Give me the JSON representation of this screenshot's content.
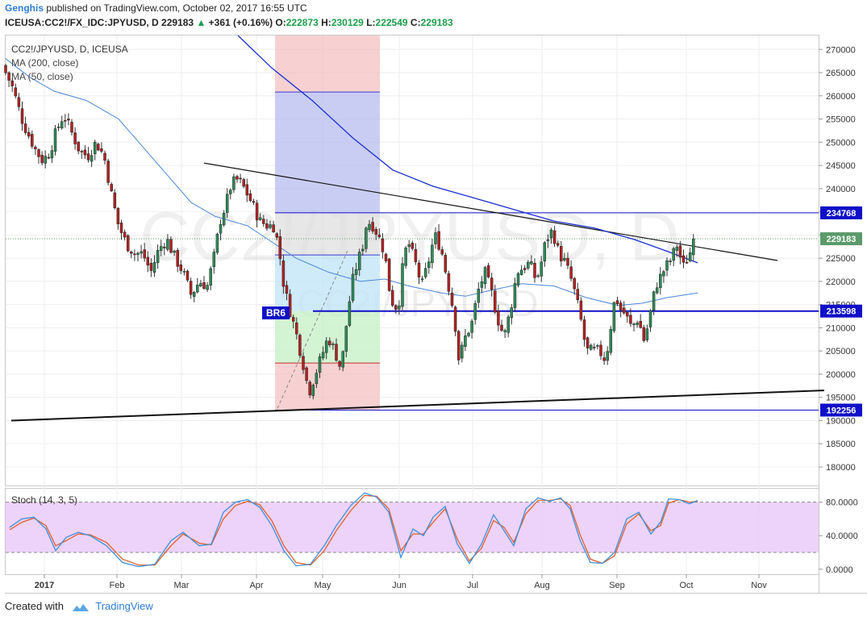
{
  "header": {
    "author": "Genghis",
    "published": "published on TradingView.com, October 02, 2017 16:55 UTC",
    "symbol_line": "ICEUSA:CC2!/FX_IDC:JPYUSD, D",
    "last": "229183",
    "change": "+361 (+0.16%)",
    "o_label": "O:",
    "o": "222873",
    "h_label": "H:",
    "h": "230129",
    "l_label": "L:",
    "l": "222549",
    "c_label": "C:",
    "c": "229183"
  },
  "legend": {
    "title": "CC2!/JPYUSD, D, ICEUSA",
    "ma200": "MA (200, close)",
    "ma50": "MA (50, close)"
  },
  "watermark": {
    "main": "CC2!/JPYUSD, D",
    "small": "CC2!/JPYUSD"
  },
  "annotation": {
    "br_label": "BR6"
  },
  "stoch": {
    "title": "Stoch (14, 3, 5)",
    "ticks": [
      "80.0000",
      "40.0000",
      "0.0000"
    ]
  },
  "footer": {
    "created_with": "Created with",
    "brand": "TradingView"
  },
  "colors": {
    "bull": "#2e8b57",
    "bear": "#b22222",
    "ma200": "#1a2fd0",
    "ma50": "#4a86d8",
    "hline": "#1010c8",
    "stoch_k": "#3d8fe0",
    "stoch_d": "#e0602d",
    "stoch_band": "#e9c8f7",
    "price_label": "#5b9b6b"
  },
  "chart_data": [
    {
      "type": "candlestick",
      "title": "CC2!/JPYUSD, D, ICEUSA",
      "x_ticks": [
        "2017",
        "Feb",
        "Mar",
        "Apr",
        "May",
        "Jun",
        "Jul",
        "Aug",
        "Sep",
        "Oct",
        "Nov"
      ],
      "y_ticks": [
        "270000",
        "265000",
        "260000",
        "255000",
        "250000",
        "245000",
        "240000",
        "235000",
        "230000",
        "225000",
        "220000",
        "215000",
        "210000",
        "205000",
        "200000",
        "195000",
        "190000",
        "185000",
        "180000"
      ],
      "ylim": [
        176000,
        273000
      ],
      "price_labels": [
        {
          "value": 234768,
          "text": "234768"
        },
        {
          "value": 229183,
          "text": "229183"
        },
        {
          "value": 213598,
          "text": "213598"
        },
        {
          "value": 192256,
          "text": "192256"
        }
      ],
      "close_path": [
        [
          0,
          265000
        ],
        [
          8,
          262000
        ],
        [
          15,
          258000
        ],
        [
          22,
          254000
        ],
        [
          30,
          251000
        ],
        [
          38,
          248000
        ],
        [
          46,
          246000
        ],
        [
          55,
          248000
        ],
        [
          62,
          252000
        ],
        [
          72,
          256000
        ],
        [
          82,
          252000
        ],
        [
          92,
          248000
        ],
        [
          102,
          247000
        ],
        [
          112,
          250000
        ],
        [
          122,
          247000
        ],
        [
          132,
          238000
        ],
        [
          140,
          232000
        ],
        [
          150,
          228000
        ],
        [
          160,
          226000
        ],
        [
          170,
          226000
        ],
        [
          180,
          222000
        ],
        [
          190,
          227000
        ],
        [
          200,
          229000
        ],
        [
          210,
          225000
        ],
        [
          220,
          222000
        ],
        [
          230,
          217000
        ],
        [
          240,
          220000
        ],
        [
          250,
          219000
        ],
        [
          258,
          225000
        ],
        [
          266,
          233000
        ],
        [
          272,
          236000
        ],
        [
          280,
          241000
        ],
        [
          288,
          242000
        ],
        [
          296,
          240000
        ],
        [
          305,
          237000
        ],
        [
          315,
          233000
        ],
        [
          325,
          232000
        ],
        [
          332,
          232000
        ],
        [
          338,
          228000
        ],
        [
          345,
          219000
        ],
        [
          352,
          214000
        ],
        [
          360,
          209000
        ],
        [
          368,
          203000
        ],
        [
          376,
          196000
        ],
        [
          384,
          200000
        ],
        [
          392,
          204000
        ],
        [
          400,
          208000
        ],
        [
          408,
          205000
        ],
        [
          416,
          201000
        ],
        [
          424,
          213000
        ],
        [
          430,
          220000
        ],
        [
          436,
          224000
        ],
        [
          442,
          227000
        ],
        [
          448,
          233000
        ],
        [
          456,
          232000
        ],
        [
          464,
          229000
        ],
        [
          470,
          226000
        ],
        [
          476,
          218000
        ],
        [
          482,
          214000
        ],
        [
          488,
          216000
        ],
        [
          494,
          226000
        ],
        [
          500,
          228000
        ],
        [
          508,
          224000
        ],
        [
          516,
          219000
        ],
        [
          524,
          224000
        ],
        [
          532,
          230000
        ],
        [
          540,
          227000
        ],
        [
          548,
          220000
        ],
        [
          556,
          213000
        ],
        [
          562,
          203000
        ],
        [
          570,
          208000
        ],
        [
          578,
          211000
        ],
        [
          586,
          218000
        ],
        [
          594,
          222000
        ],
        [
          602,
          218000
        ],
        [
          610,
          212000
        ],
        [
          618,
          208000
        ],
        [
          626,
          214000
        ],
        [
          634,
          222000
        ],
        [
          642,
          223000
        ],
        [
          650,
          224000
        ],
        [
          658,
          220000
        ],
        [
          664,
          224000
        ],
        [
          670,
          229000
        ],
        [
          678,
          231000
        ],
        [
          686,
          226000
        ],
        [
          694,
          224000
        ],
        [
          702,
          220000
        ],
        [
          708,
          216000
        ],
        [
          714,
          211000
        ],
        [
          720,
          205000
        ],
        [
          728,
          205000
        ],
        [
          736,
          205000
        ],
        [
          744,
          203000
        ],
        [
          750,
          210000
        ],
        [
          756,
          217000
        ],
        [
          762,
          214000
        ],
        [
          768,
          213000
        ],
        [
          776,
          210000
        ],
        [
          784,
          212000
        ],
        [
          792,
          207000
        ],
        [
          798,
          212000
        ],
        [
          806,
          219000
        ],
        [
          812,
          221000
        ],
        [
          818,
          223000
        ],
        [
          826,
          225000
        ],
        [
          832,
          228000
        ],
        [
          840,
          223000
        ],
        [
          848,
          226000
        ],
        [
          856,
          229183
        ]
      ],
      "ma200": [
        [
          288,
          273000
        ],
        [
          330,
          266000
        ],
        [
          380,
          259000
        ],
        [
          430,
          251000
        ],
        [
          480,
          244000
        ],
        [
          530,
          240500
        ],
        [
          580,
          238000
        ],
        [
          630,
          235500
        ],
        [
          680,
          233000
        ],
        [
          730,
          231500
        ],
        [
          780,
          229000
        ],
        [
          820,
          226500
        ],
        [
          858,
          224000
        ]
      ],
      "ma50": [
        [
          0,
          268000
        ],
        [
          30,
          264000
        ],
        [
          60,
          261000
        ],
        [
          100,
          259000
        ],
        [
          140,
          255000
        ],
        [
          170,
          249000
        ],
        [
          200,
          243000
        ],
        [
          230,
          237000
        ],
        [
          260,
          234000
        ],
        [
          300,
          232000
        ],
        [
          330,
          228500
        ],
        [
          360,
          225000
        ],
        [
          400,
          222000
        ],
        [
          440,
          220000
        ],
        [
          470,
          220500
        ],
        [
          500,
          219000
        ],
        [
          540,
          217500
        ],
        [
          570,
          216800
        ],
        [
          600,
          218000
        ],
        [
          640,
          219500
        ],
        [
          680,
          219000
        ],
        [
          720,
          216500
        ],
        [
          760,
          214800
        ],
        [
          790,
          215300
        ],
        [
          820,
          216500
        ],
        [
          858,
          217500
        ]
      ],
      "fib_box": {
        "upper": 260800,
        "mid_top": 225700,
        "split": 213598,
        "mid_low": 202400,
        "lower": 192256
      },
      "trendlines": [
        {
          "from": [
            246,
            245500
          ],
          "to": [
            957,
            224500
          ]
        },
        {
          "from": [
            7,
            190000
          ],
          "to": [
            1015,
            196500
          ]
        }
      ]
    },
    {
      "type": "line",
      "title": "Stoch (14, 3, 5)",
      "ylim": [
        -6,
        96
      ],
      "y_ticks": [
        "80.0000",
        "40.0000",
        "0.0000"
      ],
      "bands": [
        20,
        80
      ],
      "k": [
        [
          5,
          50
        ],
        [
          20,
          60
        ],
        [
          35,
          62
        ],
        [
          50,
          48
        ],
        [
          62,
          22
        ],
        [
          75,
          38
        ],
        [
          90,
          44
        ],
        [
          105,
          40
        ],
        [
          125,
          28
        ],
        [
          145,
          8
        ],
        [
          165,
          3
        ],
        [
          185,
          6
        ],
        [
          205,
          34
        ],
        [
          220,
          44
        ],
        [
          240,
          28
        ],
        [
          255,
          30
        ],
        [
          270,
          68
        ],
        [
          285,
          80
        ],
        [
          300,
          83
        ],
        [
          315,
          74
        ],
        [
          330,
          52
        ],
        [
          345,
          22
        ],
        [
          360,
          4
        ],
        [
          378,
          6
        ],
        [
          395,
          28
        ],
        [
          410,
          52
        ],
        [
          428,
          76
        ],
        [
          445,
          91
        ],
        [
          460,
          86
        ],
        [
          475,
          68
        ],
        [
          490,
          14
        ],
        [
          505,
          48
        ],
        [
          518,
          40
        ],
        [
          530,
          62
        ],
        [
          545,
          75
        ],
        [
          560,
          30
        ],
        [
          575,
          7
        ],
        [
          590,
          30
        ],
        [
          605,
          65
        ],
        [
          618,
          46
        ],
        [
          630,
          28
        ],
        [
          645,
          72
        ],
        [
          660,
          85
        ],
        [
          675,
          81
        ],
        [
          688,
          85
        ],
        [
          700,
          72
        ],
        [
          712,
          35
        ],
        [
          725,
          8
        ],
        [
          740,
          7
        ],
        [
          755,
          20
        ],
        [
          770,
          60
        ],
        [
          785,
          68
        ],
        [
          800,
          42
        ],
        [
          812,
          56
        ],
        [
          822,
          84
        ],
        [
          835,
          83
        ],
        [
          848,
          78
        ],
        [
          858,
          82
        ]
      ],
      "d": [
        [
          5,
          47
        ],
        [
          20,
          56
        ],
        [
          35,
          61
        ],
        [
          50,
          52
        ],
        [
          62,
          28
        ],
        [
          75,
          34
        ],
        [
          90,
          42
        ],
        [
          105,
          41
        ],
        [
          125,
          32
        ],
        [
          145,
          12
        ],
        [
          165,
          5
        ],
        [
          185,
          5
        ],
        [
          205,
          28
        ],
        [
          220,
          42
        ],
        [
          240,
          31
        ],
        [
          255,
          29
        ],
        [
          270,
          60
        ],
        [
          285,
          76
        ],
        [
          300,
          81
        ],
        [
          315,
          77
        ],
        [
          330,
          58
        ],
        [
          345,
          28
        ],
        [
          360,
          8
        ],
        [
          378,
          5
        ],
        [
          395,
          22
        ],
        [
          410,
          46
        ],
        [
          428,
          70
        ],
        [
          445,
          88
        ],
        [
          460,
          87
        ],
        [
          475,
          72
        ],
        [
          490,
          22
        ],
        [
          505,
          42
        ],
        [
          518,
          42
        ],
        [
          530,
          56
        ],
        [
          545,
          72
        ],
        [
          560,
          36
        ],
        [
          575,
          10
        ],
        [
          590,
          25
        ],
        [
          605,
          58
        ],
        [
          618,
          50
        ],
        [
          630,
          32
        ],
        [
          645,
          66
        ],
        [
          660,
          82
        ],
        [
          675,
          82
        ],
        [
          688,
          84
        ],
        [
          700,
          76
        ],
        [
          712,
          42
        ],
        [
          725,
          12
        ],
        [
          740,
          7
        ],
        [
          755,
          16
        ],
        [
          770,
          54
        ],
        [
          785,
          66
        ],
        [
          800,
          46
        ],
        [
          812,
          52
        ],
        [
          822,
          79
        ],
        [
          835,
          83
        ],
        [
          848,
          80
        ],
        [
          858,
          81
        ]
      ]
    }
  ]
}
